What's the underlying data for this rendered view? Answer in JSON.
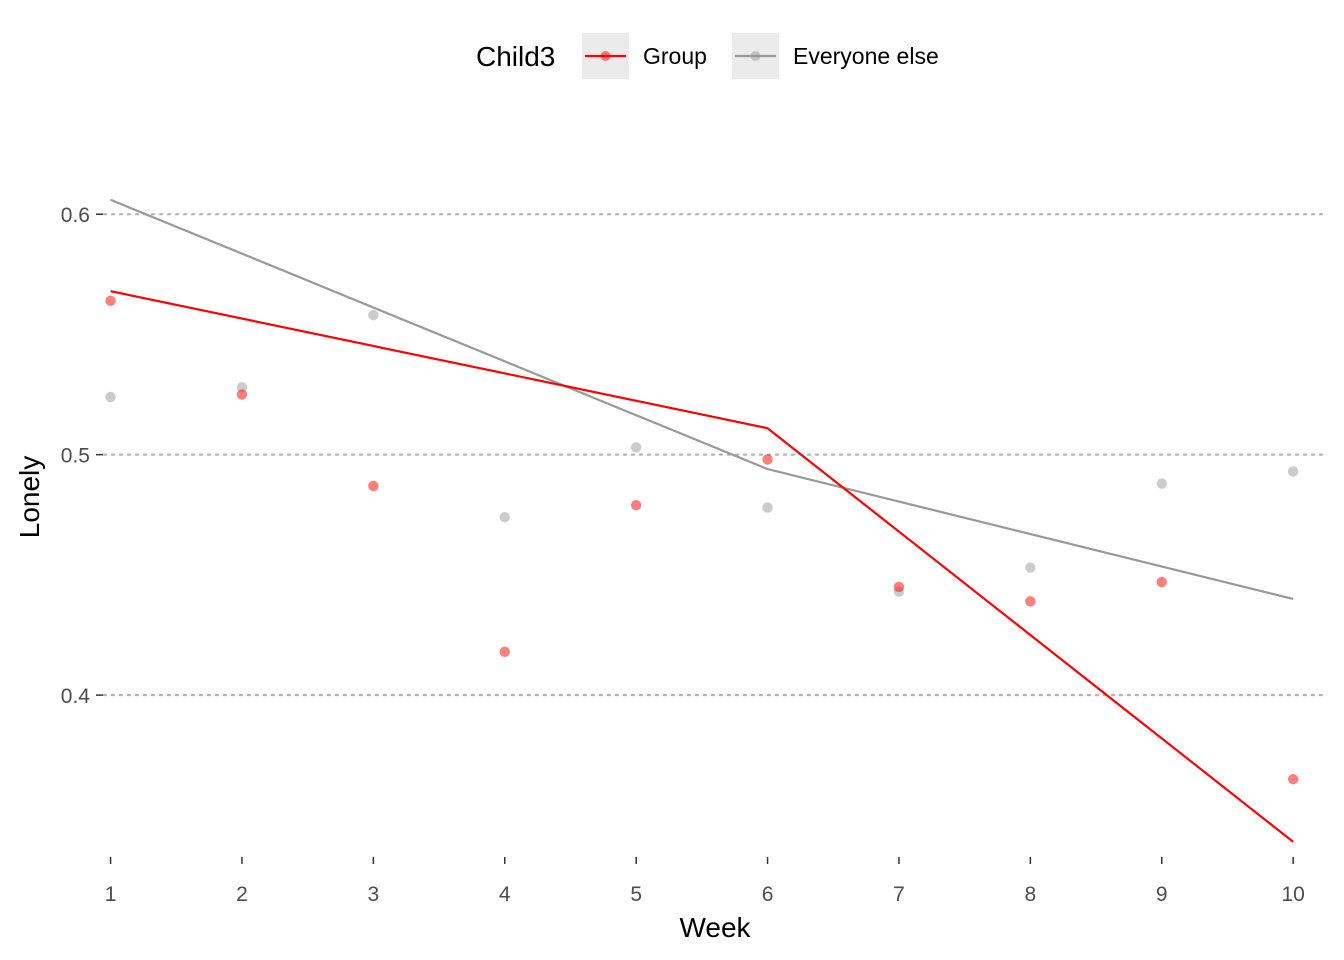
{
  "chart_data": {
    "type": "line",
    "xlabel": "Week",
    "ylabel": "Lonely",
    "x": [
      1,
      2,
      3,
      4,
      5,
      6,
      7,
      8,
      9,
      10
    ],
    "xlim": [
      0.95,
      10.25
    ],
    "ylim": [
      0.3335,
      0.6475
    ],
    "yticks": [
      0.4,
      0.5,
      0.6
    ],
    "ytick_labels": [
      "0.4",
      "0.5",
      "0.6"
    ],
    "grid": "horizontal dotted",
    "legend": {
      "title": "Child3",
      "placement": "top",
      "entries": [
        "Group",
        "Everyone else"
      ]
    },
    "series": [
      {
        "name": "Group",
        "color": "#ff0000",
        "points": [
          0.564,
          0.525,
          0.487,
          0.418,
          0.479,
          0.498,
          0.445,
          0.439,
          0.447,
          0.365
        ],
        "fit_line": {
          "x": [
            1,
            6,
            10
          ],
          "y": [
            0.568,
            0.511,
            0.339
          ]
        }
      },
      {
        "name": "Everyone else",
        "color": "#999999",
        "points": [
          0.524,
          0.528,
          0.558,
          0.474,
          0.503,
          0.478,
          0.443,
          0.453,
          0.488,
          0.493
        ],
        "fit_line": {
          "x": [
            1,
            6,
            10
          ],
          "y": [
            0.606,
            0.494,
            0.44
          ]
        }
      }
    ]
  }
}
